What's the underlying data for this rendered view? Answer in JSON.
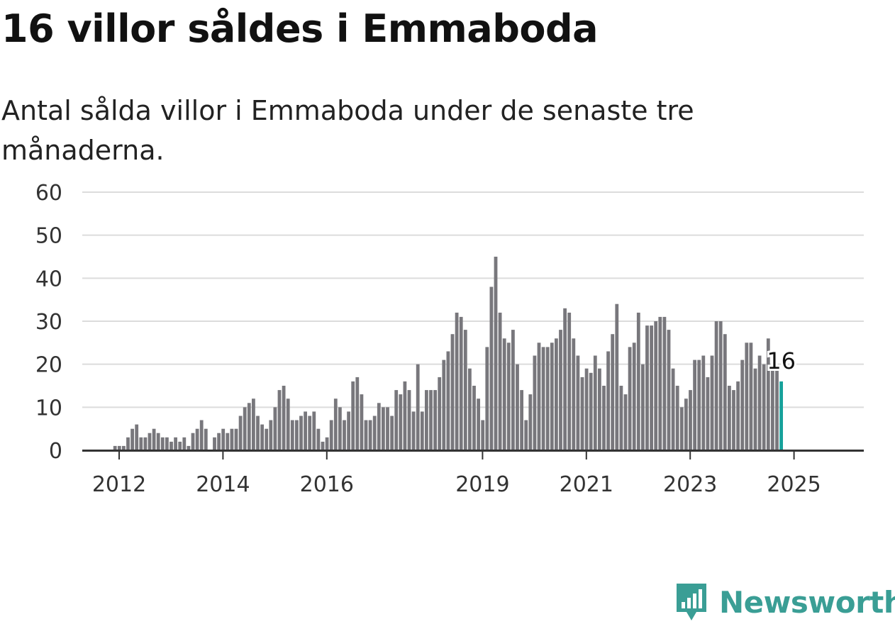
{
  "title": "16 villor såldes i Emmaboda",
  "subtitle": "Antal sålda villor i Emmaboda under de senaste tre månaderna.",
  "brand": {
    "name": "Newsworthy",
    "color": "#3a9e95",
    "icon": "bar-chart-pin-icon"
  },
  "colors": {
    "bar": "#78777c",
    "highlight": "#16a19b"
  },
  "chart_data": {
    "type": "bar",
    "title": "16 villor såldes i Emmaboda",
    "subtitle": "Antal sålda villor i Emmaboda under de senaste tre månaderna.",
    "ylim": [
      0,
      60
    ],
    "yticks": [
      0,
      10,
      20,
      30,
      40,
      50,
      60
    ],
    "xticks": [
      "2012",
      "2014",
      "2016",
      "2019",
      "2021",
      "2023",
      "2025"
    ],
    "grid": true,
    "start": "2012-01",
    "last_value_label": "16",
    "values": [
      0,
      0,
      1,
      1,
      1,
      3,
      5,
      6,
      3,
      3,
      4,
      5,
      4,
      3,
      3,
      2,
      3,
      2,
      3,
      1,
      4,
      5,
      7,
      5,
      0,
      3,
      4,
      5,
      4,
      5,
      5,
      8,
      10,
      11,
      12,
      8,
      6,
      5,
      7,
      10,
      14,
      15,
      12,
      7,
      7,
      8,
      9,
      8,
      9,
      5,
      2,
      3,
      7,
      12,
      10,
      7,
      9,
      16,
      17,
      13,
      7,
      7,
      8,
      11,
      10,
      10,
      8,
      14,
      13,
      16,
      14,
      9,
      20,
      9,
      14,
      14,
      14,
      17,
      21,
      23,
      27,
      32,
      31,
      28,
      19,
      15,
      12,
      7,
      24,
      38,
      45,
      32,
      26,
      25,
      28,
      20,
      14,
      7,
      13,
      22,
      25,
      24,
      24,
      25,
      26,
      28,
      33,
      32,
      26,
      22,
      17,
      19,
      18,
      22,
      19,
      15,
      23,
      27,
      34,
      15,
      13,
      24,
      25,
      32,
      20,
      29,
      29,
      30,
      31,
      31,
      28,
      19,
      15,
      10,
      12,
      14,
      21,
      21,
      22,
      17,
      22,
      30,
      30,
      27,
      15,
      14,
      16,
      21,
      25,
      25,
      19,
      22,
      20,
      26,
      19,
      19,
      16
    ]
  }
}
